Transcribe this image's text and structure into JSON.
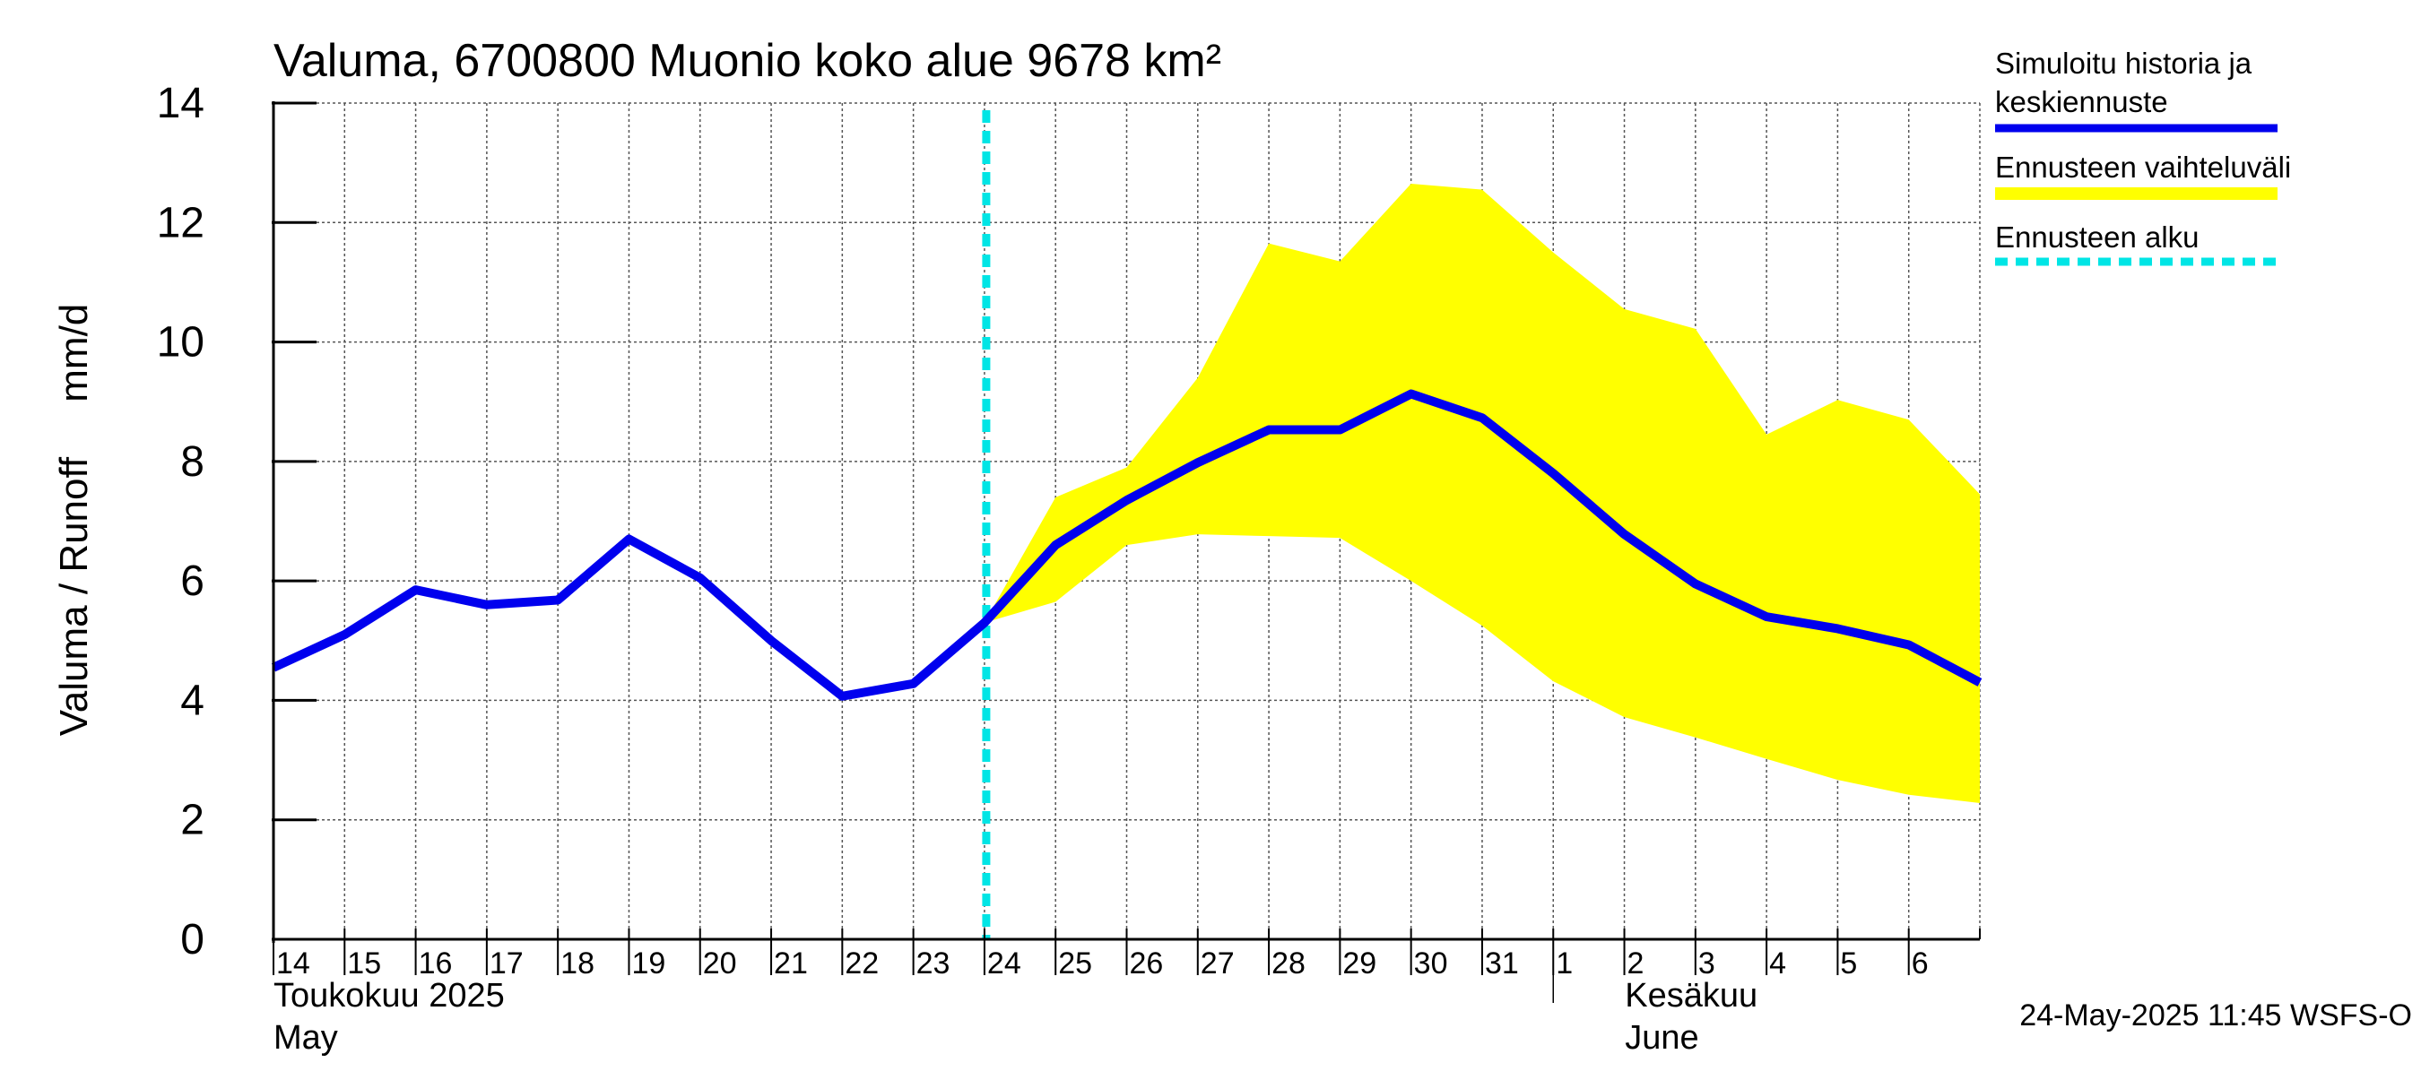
{
  "chart_data": {
    "type": "line",
    "title": "Valuma, 6700800 Muonio koko alue 9678 km²",
    "ylabel": "Valuma / Runoff     mm/d",
    "ylim": [
      0,
      14
    ],
    "yticks": [
      0,
      2,
      4,
      6,
      8,
      10,
      12,
      14
    ],
    "x_categories": [
      "14",
      "15",
      "16",
      "17",
      "18",
      "19",
      "20",
      "21",
      "22",
      "23",
      "24",
      "25",
      "26",
      "27",
      "28",
      "29",
      "30",
      "31",
      "1",
      "2",
      "3",
      "4",
      "5",
      "6"
    ],
    "month_labels": [
      {
        "name": "Toukokuu  2025",
        "name_en": "May",
        "start_day_index": 0
      },
      {
        "name": "Kesäkuu",
        "name_en": "June",
        "start_day_index": 18
      }
    ],
    "grid": true,
    "forecast_start_index": 10,
    "series": [
      {
        "name": "Simuloitu historia ja keskiennuste",
        "color": "#0000ee",
        "x": [
          0,
          1,
          2,
          3,
          4,
          5,
          6,
          7,
          8,
          9,
          10,
          11,
          12,
          13,
          14,
          15,
          16,
          17,
          18,
          19,
          20,
          21,
          22,
          23,
          24
        ],
        "values": [
          4.55,
          5.1,
          5.85,
          5.6,
          5.68,
          6.7,
          6.05,
          5.0,
          4.07,
          4.28,
          5.3,
          6.6,
          7.35,
          7.98,
          8.53,
          8.53,
          9.13,
          8.73,
          7.8,
          6.78,
          5.95,
          5.4,
          5.2,
          4.93,
          4.3
        ]
      }
    ],
    "band": {
      "name": "Ennusteen vaihteluväli",
      "color": "#ffff00",
      "x": [
        10,
        11,
        12,
        13,
        14,
        15,
        16,
        17,
        18,
        19,
        20,
        21,
        22,
        23,
        24
      ],
      "upper": [
        5.3,
        7.4,
        7.9,
        9.4,
        11.65,
        11.35,
        12.65,
        12.55,
        11.5,
        10.55,
        10.22,
        8.45,
        9.03,
        8.7,
        7.45
      ],
      "lower": [
        5.3,
        5.65,
        6.6,
        6.78,
        6.75,
        6.72,
        6.0,
        5.25,
        4.32,
        3.72,
        3.38,
        3.02,
        2.67,
        2.42,
        2.28
      ]
    },
    "forecast_line": {
      "name": "Ennusteen alku",
      "color": "#00e5e5"
    },
    "legend_position": "top-right",
    "legend": [
      {
        "label_line1": "Simuloitu historia ja",
        "label_line2": "keskiennuste",
        "color": "#0000ee",
        "style": "solid"
      },
      {
        "label_line1": "Ennusteen vaihteluväli",
        "label_line2": "",
        "color": "#ffff00",
        "style": "band"
      },
      {
        "label_line1": "Ennusteen alku",
        "label_line2": "",
        "color": "#00e5e5",
        "style": "dashed"
      }
    ],
    "footer": "24-May-2025 11:45 WSFS-O"
  }
}
